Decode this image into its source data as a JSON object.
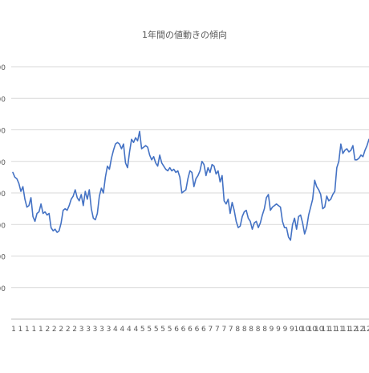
{
  "chart_data": {
    "type": "line",
    "title": "1年間の値動きの傾向",
    "xlabel": "",
    "ylabel": "",
    "x_tick_labels": [
      "1",
      "1",
      "1",
      "1",
      "1",
      "2",
      "2",
      "2",
      "2",
      "2",
      "3",
      "3",
      "3",
      "3",
      "3",
      "4",
      "4",
      "4",
      "4",
      "5",
      "5",
      "5",
      "5",
      "5",
      "6",
      "6",
      "6",
      "6",
      "6",
      "7",
      "7",
      "7",
      "7",
      "8",
      "8",
      "8",
      "8",
      "8",
      "9",
      "9",
      "9",
      "9",
      "10",
      "10",
      "10",
      "10",
      "11",
      "11",
      "11",
      "11",
      "12",
      "12",
      "12"
    ],
    "y_tick_labels": [
      "00",
      "00",
      "00",
      "00",
      "00",
      "00",
      "00",
      "00"
    ],
    "ylim": [
      0,
      8
    ],
    "grid": true,
    "line_color": "#4472C4",
    "series": [
      {
        "values": [
          4.65,
          4.5,
          4.45,
          4.3,
          4.05,
          4.2,
          3.8,
          3.55,
          3.6,
          3.85,
          3.25,
          3.1,
          3.35,
          3.4,
          3.65,
          3.35,
          3.4,
          3.3,
          3.35,
          2.9,
          2.8,
          2.85,
          2.75,
          2.8,
          3.05,
          3.45,
          3.5,
          3.45,
          3.6,
          3.8,
          3.9,
          4.1,
          3.85,
          3.75,
          3.95,
          3.6,
          4.05,
          3.8,
          4.1,
          3.5,
          3.2,
          3.15,
          3.35,
          3.9,
          4.15,
          4.0,
          4.5,
          4.85,
          4.75,
          5.1,
          5.35,
          5.55,
          5.6,
          5.55,
          5.4,
          5.55,
          4.95,
          4.8,
          5.3,
          5.7,
          5.6,
          5.75,
          5.65,
          5.95,
          5.4,
          5.45,
          5.5,
          5.45,
          5.2,
          5.05,
          5.15,
          4.95,
          4.85,
          5.2,
          4.95,
          4.85,
          4.75,
          4.7,
          4.8,
          4.7,
          4.75,
          4.65,
          4.7,
          4.5,
          4.0,
          4.05,
          4.1,
          4.45,
          4.7,
          4.65,
          4.2,
          4.45,
          4.55,
          4.7,
          5.0,
          4.9,
          4.55,
          4.8,
          4.65,
          4.9,
          4.85,
          4.6,
          4.7,
          4.35,
          4.55,
          3.75,
          3.65,
          3.8,
          3.35,
          3.7,
          3.45,
          3.1,
          2.9,
          2.95,
          3.25,
          3.4,
          3.45,
          3.2,
          3.1,
          2.85,
          3.05,
          3.1,
          2.9,
          3.05,
          3.3,
          3.5,
          3.85,
          3.95,
          3.45,
          3.55,
          3.6,
          3.65,
          3.6,
          3.55,
          3.1,
          2.9,
          2.9,
          2.6,
          2.5,
          3.0,
          3.2,
          2.85,
          3.25,
          3.3,
          3.05,
          2.7,
          2.9,
          3.3,
          3.55,
          3.8,
          4.4,
          4.2,
          4.1,
          3.95,
          3.5,
          3.55,
          3.9,
          3.75,
          3.8,
          3.95,
          4.05,
          4.8,
          5.0,
          5.55,
          5.25,
          5.35,
          5.4,
          5.3,
          5.35,
          5.5,
          5.05,
          5.05,
          5.1,
          5.2,
          5.15,
          5.35,
          5.5,
          5.7
        ]
      }
    ]
  }
}
